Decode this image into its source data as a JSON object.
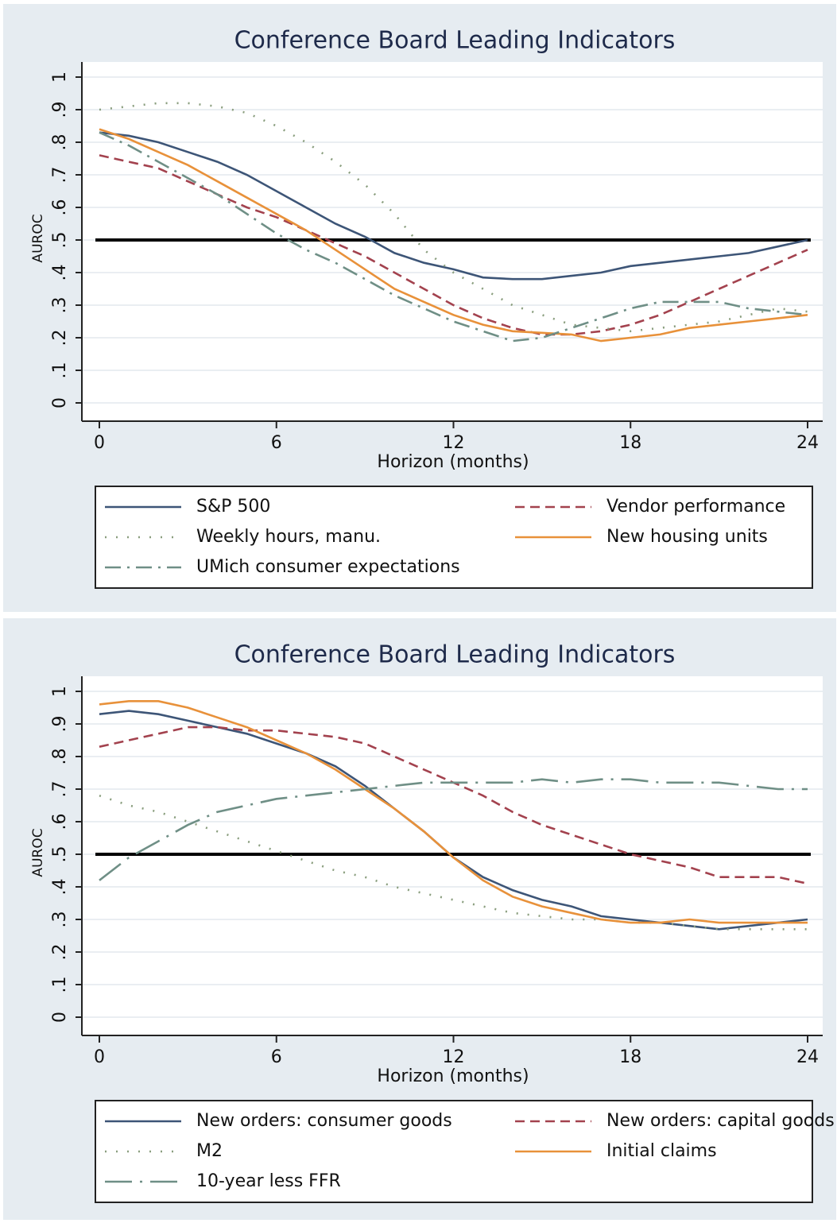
{
  "chart_data": [
    {
      "type": "line",
      "title": "Conference Board Leading Indicators",
      "x_label": "Horizon (months)",
      "y_label": "AUROC",
      "x": [
        0,
        1,
        2,
        3,
        4,
        5,
        6,
        7,
        8,
        9,
        10,
        11,
        12,
        13,
        14,
        15,
        16,
        17,
        18,
        19,
        20,
        21,
        22,
        23,
        24
      ],
      "xlim": [
        0,
        24
      ],
      "xticks": [
        0,
        6,
        12,
        18,
        24
      ],
      "ylim": [
        0,
        1
      ],
      "yticks": [
        0,
        {
          "value": 0.1,
          "label": ".1"
        },
        {
          "value": 0.2,
          "label": ".2"
        },
        {
          "value": 0.3,
          "label": ".3"
        },
        {
          "value": 0.4,
          "label": ".4"
        },
        {
          "value": 0.5,
          "label": ".5"
        },
        {
          "value": 0.6,
          "label": ".6"
        },
        {
          "value": 0.7,
          "label": ".7"
        },
        {
          "value": 0.8,
          "label": ".8"
        },
        {
          "value": 0.9,
          "label": ".9"
        },
        1
      ],
      "grid": true,
      "reference_line": 0.5,
      "series": [
        {
          "name": "S&P 500",
          "color": "#3d5577",
          "line_style": "solid",
          "values": [
            0.83,
            0.82,
            0.8,
            0.77,
            0.74,
            0.7,
            0.65,
            0.6,
            0.55,
            0.51,
            0.46,
            0.43,
            0.41,
            0.385,
            0.38,
            0.38,
            0.39,
            0.4,
            0.42,
            0.43,
            0.44,
            0.45,
            0.46,
            0.48,
            0.5
          ]
        },
        {
          "name": "Vendor performance",
          "color": "#a3424e",
          "line_style": "dash",
          "values": [
            0.76,
            0.74,
            0.72,
            0.68,
            0.64,
            0.6,
            0.57,
            0.53,
            0.49,
            0.45,
            0.4,
            0.35,
            0.3,
            0.26,
            0.23,
            0.21,
            0.21,
            0.22,
            0.24,
            0.27,
            0.31,
            0.35,
            0.39,
            0.43,
            0.47
          ]
        },
        {
          "name": "Weekly hours, manu.",
          "color": "#8a9e7e",
          "line_style": "dot",
          "values": [
            0.9,
            0.91,
            0.92,
            0.92,
            0.91,
            0.89,
            0.85,
            0.8,
            0.74,
            0.67,
            0.58,
            0.47,
            0.4,
            0.35,
            0.3,
            0.27,
            0.24,
            0.23,
            0.22,
            0.23,
            0.24,
            0.25,
            0.27,
            0.29,
            0.28
          ]
        },
        {
          "name": "New housing units",
          "color": "#e8913a",
          "line_style": "solid",
          "values": [
            0.84,
            0.81,
            0.77,
            0.73,
            0.68,
            0.63,
            0.58,
            0.53,
            0.47,
            0.41,
            0.35,
            0.31,
            0.27,
            0.24,
            0.22,
            0.215,
            0.21,
            0.19,
            0.2,
            0.21,
            0.23,
            0.24,
            0.25,
            0.26,
            0.27
          ]
        },
        {
          "name": "UMich consumer expectations",
          "color": "#6f8f86",
          "line_style": "dashdot",
          "values": [
            0.83,
            0.79,
            0.74,
            0.69,
            0.64,
            0.58,
            0.52,
            0.47,
            0.43,
            0.38,
            0.33,
            0.29,
            0.25,
            0.22,
            0.19,
            0.2,
            0.23,
            0.26,
            0.29,
            0.31,
            0.31,
            0.31,
            0.29,
            0.28,
            0.27
          ]
        }
      ]
    },
    {
      "type": "line",
      "title": "Conference Board Leading Indicators",
      "x_label": "Horizon (months)",
      "y_label": "AUROC",
      "x": [
        0,
        1,
        2,
        3,
        4,
        5,
        6,
        7,
        8,
        9,
        10,
        11,
        12,
        13,
        14,
        15,
        16,
        17,
        18,
        19,
        20,
        21,
        22,
        23,
        24
      ],
      "xlim": [
        0,
        24
      ],
      "xticks": [
        0,
        6,
        12,
        18,
        24
      ],
      "ylim": [
        0,
        1
      ],
      "yticks": [
        0,
        {
          "value": 0.1,
          "label": ".1"
        },
        {
          "value": 0.2,
          "label": ".2"
        },
        {
          "value": 0.3,
          "label": ".3"
        },
        {
          "value": 0.4,
          "label": ".4"
        },
        {
          "value": 0.5,
          "label": ".5"
        },
        {
          "value": 0.6,
          "label": ".6"
        },
        {
          "value": 0.7,
          "label": ".7"
        },
        {
          "value": 0.8,
          "label": ".8"
        },
        {
          "value": 0.9,
          "label": ".9"
        },
        1
      ],
      "grid": true,
      "reference_line": 0.5,
      "series": [
        {
          "name": "New orders: consumer goods",
          "color": "#3d5577",
          "line_style": "solid",
          "values": [
            0.93,
            0.94,
            0.93,
            0.91,
            0.89,
            0.87,
            0.84,
            0.81,
            0.77,
            0.71,
            0.64,
            0.57,
            0.49,
            0.43,
            0.39,
            0.36,
            0.34,
            0.31,
            0.3,
            0.29,
            0.28,
            0.27,
            0.28,
            0.29,
            0.3
          ]
        },
        {
          "name": "New orders: capital goods",
          "color": "#a3424e",
          "line_style": "dash",
          "values": [
            0.83,
            0.85,
            0.87,
            0.89,
            0.89,
            0.88,
            0.88,
            0.87,
            0.86,
            0.84,
            0.8,
            0.76,
            0.72,
            0.68,
            0.63,
            0.59,
            0.56,
            0.53,
            0.5,
            0.48,
            0.46,
            0.43,
            0.43,
            0.43,
            0.41
          ]
        },
        {
          "name": "M2",
          "color": "#8a9e7e",
          "line_style": "dot",
          "values": [
            0.68,
            0.65,
            0.63,
            0.6,
            0.57,
            0.54,
            0.51,
            0.48,
            0.45,
            0.43,
            0.4,
            0.38,
            0.36,
            0.34,
            0.32,
            0.31,
            0.3,
            0.3,
            0.29,
            0.29,
            0.28,
            0.27,
            0.27,
            0.27,
            0.27
          ]
        },
        {
          "name": "Initial claims",
          "color": "#e8913a",
          "line_style": "solid",
          "values": [
            0.96,
            0.97,
            0.97,
            0.95,
            0.92,
            0.89,
            0.85,
            0.81,
            0.76,
            0.7,
            0.64,
            0.57,
            0.49,
            0.42,
            0.37,
            0.34,
            0.32,
            0.3,
            0.29,
            0.29,
            0.3,
            0.29,
            0.29,
            0.29,
            0.29
          ]
        },
        {
          "name": "10-year less FFR",
          "color": "#6f8f86",
          "line_style": "longdashdot",
          "values": [
            0.42,
            0.49,
            0.54,
            0.59,
            0.63,
            0.65,
            0.67,
            0.68,
            0.69,
            0.7,
            0.71,
            0.72,
            0.72,
            0.72,
            0.72,
            0.73,
            0.72,
            0.73,
            0.73,
            0.72,
            0.72,
            0.72,
            0.71,
            0.7,
            0.7
          ]
        }
      ]
    }
  ]
}
